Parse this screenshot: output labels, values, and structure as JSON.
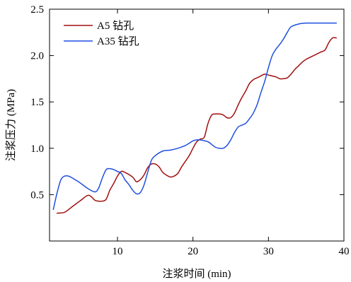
{
  "chart_data": {
    "type": "line",
    "title": "",
    "xlabel": "注浆时间 (min)",
    "ylabel": "注浆压力 (MPa)",
    "xlim": [
      1,
      40
    ],
    "ylim": [
      0,
      2.5
    ],
    "xticks": [
      10,
      20,
      30,
      40
    ],
    "yticks": [
      0.5,
      1.0,
      1.5,
      2.0,
      2.5
    ],
    "xtick_labels": [
      "10",
      "20",
      "30",
      "40"
    ],
    "ytick_labels": [
      "0.5",
      "1.0",
      "1.5",
      "2.0",
      "2.5"
    ],
    "grid": false,
    "legend_position": "top-left",
    "series": [
      {
        "name": "A5 钻孔",
        "color": "#a01010",
        "x": [
          2.0,
          3.0,
          4.0,
          5.0,
          6.0,
          6.5,
          7.0,
          7.5,
          8.0,
          8.5,
          9.0,
          9.5,
          10.0,
          10.5,
          11.0,
          12.0,
          12.5,
          13.0,
          13.5,
          14.0,
          14.5,
          15.0,
          15.5,
          16.0,
          16.5,
          17.0,
          17.5,
          18.0,
          18.5,
          19.0,
          19.5,
          20.0,
          20.5,
          21.0,
          21.5,
          22.0,
          22.5,
          23.0,
          23.5,
          24.0,
          24.5,
          25.0,
          25.5,
          26.0,
          26.5,
          27.0,
          27.5,
          28.0,
          28.5,
          29.0,
          29.5,
          30.0,
          30.5,
          31.0,
          31.5,
          32.0,
          32.5,
          33.0,
          33.5,
          34.0,
          34.5,
          35.0,
          35.5,
          36.0,
          36.5,
          37.0,
          37.5,
          38.0,
          38.5,
          39.0
        ],
        "values": [
          0.3,
          0.31,
          0.37,
          0.43,
          0.49,
          0.48,
          0.44,
          0.43,
          0.43,
          0.45,
          0.55,
          0.62,
          0.7,
          0.75,
          0.74,
          0.69,
          0.64,
          0.66,
          0.71,
          0.79,
          0.83,
          0.83,
          0.8,
          0.74,
          0.71,
          0.69,
          0.7,
          0.73,
          0.8,
          0.86,
          0.92,
          1.0,
          1.07,
          1.1,
          1.12,
          1.27,
          1.36,
          1.37,
          1.37,
          1.36,
          1.33,
          1.33,
          1.38,
          1.47,
          1.55,
          1.62,
          1.7,
          1.74,
          1.76,
          1.78,
          1.8,
          1.79,
          1.78,
          1.77,
          1.75,
          1.75,
          1.76,
          1.8,
          1.85,
          1.89,
          1.93,
          1.96,
          1.98,
          2.0,
          2.02,
          2.04,
          2.06,
          2.14,
          2.19,
          2.19
        ]
      },
      {
        "name": "A35 钻孔",
        "color": "#1f4fe0",
        "x": [
          1.5,
          2.0,
          2.5,
          3.0,
          3.5,
          4.0,
          5.0,
          6.0,
          7.0,
          7.5,
          8.0,
          8.5,
          9.0,
          9.5,
          10.0,
          10.5,
          11.0,
          11.5,
          12.0,
          12.5,
          13.0,
          13.5,
          14.0,
          14.5,
          15.0,
          16.0,
          17.0,
          18.0,
          19.0,
          20.0,
          20.5,
          21.0,
          22.0,
          22.5,
          23.0,
          23.5,
          24.0,
          24.5,
          25.0,
          25.5,
          26.0,
          26.5,
          27.0,
          27.5,
          28.0,
          28.5,
          29.0,
          29.5,
          30.0,
          30.5,
          31.0,
          31.5,
          32.0,
          32.5,
          33.0,
          34.0,
          35.0,
          36.0,
          37.0,
          38.0,
          39.0
        ],
        "values": [
          0.34,
          0.52,
          0.66,
          0.7,
          0.7,
          0.68,
          0.63,
          0.57,
          0.53,
          0.57,
          0.68,
          0.77,
          0.78,
          0.77,
          0.75,
          0.73,
          0.66,
          0.61,
          0.55,
          0.51,
          0.52,
          0.6,
          0.74,
          0.87,
          0.92,
          0.97,
          0.98,
          1.0,
          1.03,
          1.08,
          1.09,
          1.09,
          1.07,
          1.04,
          1.01,
          1.0,
          1.0,
          1.03,
          1.09,
          1.17,
          1.23,
          1.25,
          1.27,
          1.32,
          1.38,
          1.47,
          1.6,
          1.72,
          1.87,
          2.0,
          2.07,
          2.12,
          2.18,
          2.25,
          2.31,
          2.34,
          2.35,
          2.35,
          2.35,
          2.35,
          2.35
        ]
      }
    ]
  }
}
